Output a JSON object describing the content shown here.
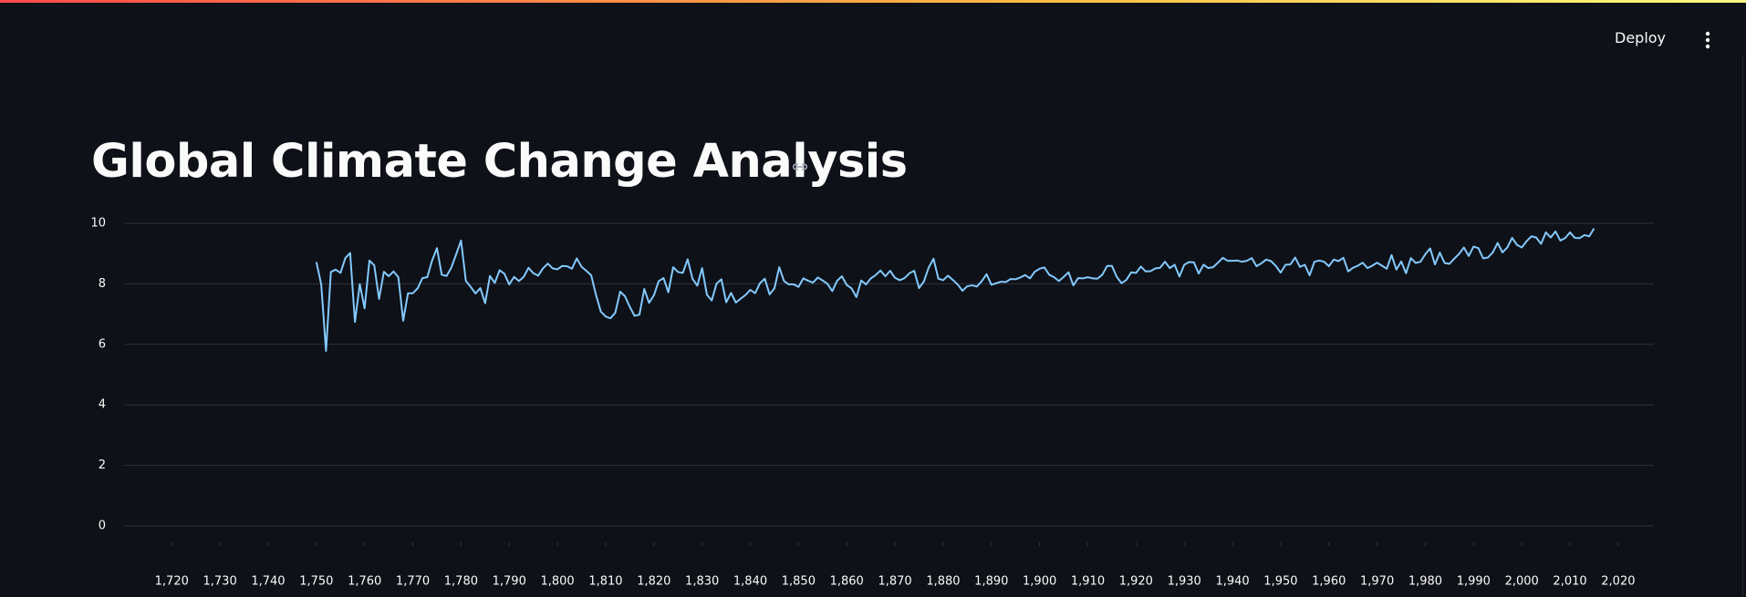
{
  "header": {
    "action": "Deploy"
  },
  "title": "Global Climate Change Analysis",
  "chart_data": {
    "type": "line",
    "color": "#83c9ff",
    "grid": true,
    "x": [
      1750,
      1751,
      1752,
      1753,
      1754,
      1755,
      1756,
      1757,
      1758,
      1759,
      1760,
      1761,
      1762,
      1763,
      1764,
      1765,
      1766,
      1767,
      1768,
      1769,
      1770,
      1771,
      1772,
      1773,
      1774,
      1775,
      1776,
      1777,
      1778,
      1779,
      1780,
      1781,
      1782,
      1783,
      1784,
      1785,
      1786,
      1787,
      1788,
      1789,
      1790,
      1791,
      1792,
      1793,
      1794,
      1795,
      1796,
      1797,
      1798,
      1799,
      1800,
      1801,
      1802,
      1803,
      1804,
      1805,
      1806,
      1807,
      1808,
      1809,
      1810,
      1811,
      1812,
      1813,
      1814,
      1815,
      1816,
      1817,
      1818,
      1819,
      1820,
      1821,
      1822,
      1823,
      1824,
      1825,
      1826,
      1827,
      1828,
      1829,
      1830,
      1831,
      1832,
      1833,
      1834,
      1835,
      1836,
      1837,
      1838,
      1839,
      1840,
      1841,
      1842,
      1843,
      1844,
      1845,
      1846,
      1847,
      1848,
      1849,
      1850,
      1851,
      1852,
      1853,
      1854,
      1855,
      1856,
      1857,
      1858,
      1859,
      1860,
      1861,
      1862,
      1863,
      1864,
      1865,
      1866,
      1867,
      1868,
      1869,
      1870,
      1871,
      1872,
      1873,
      1874,
      1875,
      1876,
      1877,
      1878,
      1879,
      1880,
      1881,
      1882,
      1883,
      1884,
      1885,
      1886,
      1887,
      1888,
      1889,
      1890,
      1891,
      1892,
      1893,
      1894,
      1895,
      1896,
      1897,
      1898,
      1899,
      1900,
      1901,
      1902,
      1903,
      1904,
      1905,
      1906,
      1907,
      1908,
      1909,
      1910,
      1911,
      1912,
      1913,
      1914,
      1915,
      1916,
      1917,
      1918,
      1919,
      1920,
      1921,
      1922,
      1923,
      1924,
      1925,
      1926,
      1927,
      1928,
      1929,
      1930,
      1931,
      1932,
      1933,
      1934,
      1935,
      1936,
      1937,
      1938,
      1939,
      1940,
      1941,
      1942,
      1943,
      1944,
      1945,
      1946,
      1947,
      1948,
      1949,
      1950,
      1951,
      1952,
      1953,
      1954,
      1955,
      1956,
      1957,
      1958,
      1959,
      1960,
      1961,
      1962,
      1963,
      1964,
      1965,
      1966,
      1967,
      1968,
      1969,
      1970,
      1971,
      1972,
      1973,
      1974,
      1975,
      1976,
      1977,
      1978,
      1979,
      1980,
      1981,
      1982,
      1983,
      1984,
      1985,
      1986,
      1987,
      1988,
      1989,
      1990,
      1991,
      1992,
      1993,
      1994,
      1995,
      1996,
      1997,
      1998,
      1999,
      2000,
      2001,
      2002,
      2003,
      2004,
      2005,
      2006,
      2007,
      2008,
      2009,
      2010,
      2011,
      2012,
      2013,
      2014,
      2015
    ],
    "values": [
      8.72,
      7.98,
      5.78,
      8.39,
      8.47,
      8.36,
      8.85,
      9.02,
      6.74,
      7.99,
      7.19,
      8.77,
      8.61,
      7.5,
      8.4,
      8.25,
      8.41,
      8.22,
      6.78,
      7.69,
      7.69,
      7.85,
      8.19,
      8.22,
      8.77,
      9.18,
      8.3,
      8.26,
      8.54,
      8.98,
      9.43,
      8.1,
      7.9,
      7.68,
      7.86,
      7.36,
      8.26,
      8.03,
      8.45,
      8.33,
      7.98,
      8.23,
      8.09,
      8.23,
      8.53,
      8.35,
      8.27,
      8.51,
      8.67,
      8.51,
      8.48,
      8.59,
      8.58,
      8.5,
      8.84,
      8.56,
      8.43,
      8.28,
      7.63,
      7.08,
      6.92,
      6.86,
      7.05,
      7.74,
      7.59,
      7.24,
      6.94,
      6.98,
      7.83,
      7.37,
      7.62,
      8.09,
      8.19,
      7.72,
      8.55,
      8.39,
      8.36,
      8.81,
      8.17,
      7.94,
      8.52,
      7.64,
      7.45,
      8.01,
      8.15,
      7.39,
      7.7,
      7.38,
      7.51,
      7.63,
      7.8,
      7.69,
      8.02,
      8.17,
      7.65,
      7.85,
      8.55,
      8.09,
      7.98,
      7.98,
      7.9,
      8.18,
      8.1,
      8.04,
      8.21,
      8.11,
      8.0,
      7.76,
      8.1,
      8.25,
      7.96,
      7.85,
      7.56,
      8.11,
      7.98,
      8.18,
      8.29,
      8.44,
      8.25,
      8.43,
      8.2,
      8.12,
      8.19,
      8.35,
      8.43,
      7.86,
      8.08,
      8.54,
      8.83,
      8.17,
      8.12,
      8.27,
      8.13,
      7.98,
      7.77,
      7.92,
      7.95,
      7.91,
      8.09,
      8.32,
      7.97,
      8.02,
      8.07,
      8.06,
      8.16,
      8.15,
      8.21,
      8.29,
      8.18,
      8.4,
      8.5,
      8.54,
      8.3,
      8.22,
      8.09,
      8.23,
      8.38,
      7.95,
      8.19,
      8.18,
      8.22,
      8.18,
      8.17,
      8.3,
      8.59,
      8.59,
      8.23,
      8.02,
      8.13,
      8.38,
      8.36,
      8.57,
      8.41,
      8.42,
      8.51,
      8.53,
      8.73,
      8.52,
      8.63,
      8.24,
      8.63,
      8.72,
      8.71,
      8.34,
      8.63,
      8.52,
      8.55,
      8.7,
      8.86,
      8.76,
      8.76,
      8.77,
      8.73,
      8.76,
      8.85,
      8.58,
      8.68,
      8.8,
      8.75,
      8.59,
      8.37,
      8.63,
      8.64,
      8.87,
      8.56,
      8.63,
      8.28,
      8.73,
      8.77,
      8.73,
      8.58,
      8.8,
      8.75,
      8.86,
      8.41,
      8.53,
      8.6,
      8.7,
      8.52,
      8.6,
      8.7,
      8.6,
      8.5,
      8.95,
      8.47,
      8.74,
      8.35,
      8.85,
      8.69,
      8.73,
      8.98,
      9.17,
      8.64,
      9.03,
      8.69,
      8.66,
      8.83,
      8.99,
      9.2,
      8.92,
      9.23,
      9.18,
      8.84,
      8.87,
      9.04,
      9.35,
      9.04,
      9.2,
      9.52,
      9.29,
      9.2,
      9.41,
      9.57,
      9.53,
      9.32,
      9.7,
      9.53,
      9.73,
      9.43,
      9.51,
      9.7,
      9.52,
      9.51,
      9.61,
      9.57,
      9.83
    ],
    "xlim": [
      1710.3,
      2027.4
    ],
    "xticks": [
      {
        "value": 1720,
        "label": "1,720"
      },
      {
        "value": 1730,
        "label": "1,730"
      },
      {
        "value": 1740,
        "label": "1,740"
      },
      {
        "value": 1750,
        "label": "1,750"
      },
      {
        "value": 1760,
        "label": "1,760"
      },
      {
        "value": 1770,
        "label": "1,770"
      },
      {
        "value": 1780,
        "label": "1,780"
      },
      {
        "value": 1790,
        "label": "1,790"
      },
      {
        "value": 1800,
        "label": "1,800"
      },
      {
        "value": 1810,
        "label": "1,810"
      },
      {
        "value": 1820,
        "label": "1,820"
      },
      {
        "value": 1830,
        "label": "1,830"
      },
      {
        "value": 1840,
        "label": "1,840"
      },
      {
        "value": 1850,
        "label": "1,850"
      },
      {
        "value": 1860,
        "label": "1,860"
      },
      {
        "value": 1870,
        "label": "1,870"
      },
      {
        "value": 1880,
        "label": "1,880"
      },
      {
        "value": 1890,
        "label": "1,890"
      },
      {
        "value": 1900,
        "label": "1,900"
      },
      {
        "value": 1910,
        "label": "1,910"
      },
      {
        "value": 1920,
        "label": "1,920"
      },
      {
        "value": 1930,
        "label": "1,930"
      },
      {
        "value": 1940,
        "label": "1,940"
      },
      {
        "value": 1950,
        "label": "1,950"
      },
      {
        "value": 1960,
        "label": "1,960"
      },
      {
        "value": 1970,
        "label": "1,970"
      },
      {
        "value": 1980,
        "label": "1,980"
      },
      {
        "value": 1990,
        "label": "1,990"
      },
      {
        "value": 2000,
        "label": "2,000"
      },
      {
        "value": 2010,
        "label": "2,010"
      },
      {
        "value": 2020,
        "label": "2,020"
      }
    ],
    "ylim": [
      0,
      10
    ],
    "yticks": [
      0,
      2,
      4,
      6,
      8,
      10
    ]
  }
}
